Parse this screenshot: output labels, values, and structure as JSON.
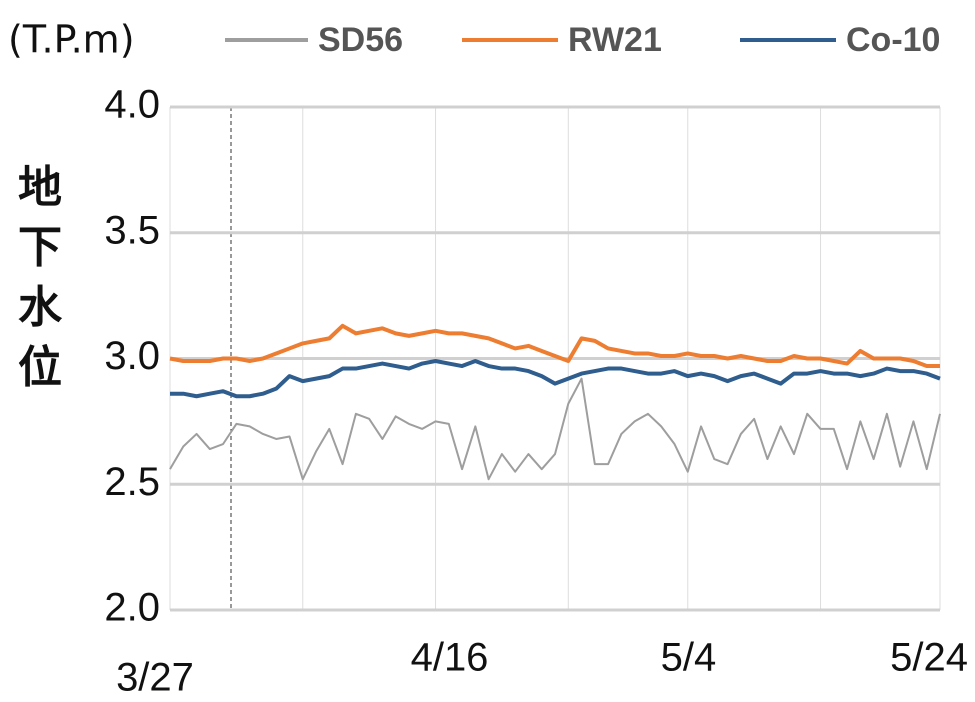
{
  "chart_data": {
    "type": "line",
    "y_unit": "(T.P.m)",
    "ylabel": "地下水位",
    "categories": [
      "3/27",
      null,
      null,
      null,
      null,
      null,
      null,
      null,
      null,
      null,
      null,
      null,
      null,
      null,
      null,
      null,
      null,
      null,
      null,
      null,
      "4/16",
      null,
      null,
      null,
      null,
      null,
      null,
      null,
      null,
      null,
      null,
      null,
      null,
      null,
      null,
      null,
      null,
      null,
      "5/4",
      null,
      null,
      null,
      null,
      null,
      null,
      null,
      null,
      null,
      null,
      null,
      null,
      null,
      null,
      null,
      null,
      null,
      null,
      null,
      "5/24"
    ],
    "series": [
      {
        "name": "SD56",
        "color": "#9e9e9e",
        "values": [
          2.56,
          2.65,
          2.7,
          2.64,
          2.66,
          2.74,
          2.73,
          2.7,
          2.68,
          2.69,
          2.52,
          2.63,
          2.72,
          2.58,
          2.78,
          2.76,
          2.68,
          2.77,
          2.74,
          2.72,
          2.75,
          2.74,
          2.56,
          2.73,
          2.52,
          2.62,
          2.55,
          2.62,
          2.56,
          2.62,
          2.82,
          2.92,
          2.58,
          2.58,
          2.7,
          2.75,
          2.78,
          2.73,
          2.66,
          2.55,
          2.73,
          2.6,
          2.58,
          2.7,
          2.76,
          2.6,
          2.73,
          2.62,
          2.78,
          2.72,
          2.72,
          2.56,
          2.75,
          2.6,
          2.78,
          2.57,
          2.75,
          2.56,
          2.78
        ]
      },
      {
        "name": "RW21",
        "color": "#ed7d31",
        "values": [
          3.0,
          2.99,
          2.99,
          2.99,
          3.0,
          3.0,
          2.99,
          3.0,
          3.02,
          3.04,
          3.06,
          3.07,
          3.08,
          3.13,
          3.1,
          3.11,
          3.12,
          3.1,
          3.09,
          3.1,
          3.11,
          3.1,
          3.1,
          3.09,
          3.08,
          3.06,
          3.04,
          3.05,
          3.03,
          3.01,
          2.99,
          3.08,
          3.07,
          3.04,
          3.03,
          3.02,
          3.02,
          3.01,
          3.01,
          3.02,
          3.01,
          3.01,
          3.0,
          3.01,
          3.0,
          2.99,
          2.99,
          3.01,
          3.0,
          3.0,
          2.99,
          2.98,
          3.03,
          3.0,
          3.0,
          3.0,
          2.99,
          2.97,
          2.97
        ]
      },
      {
        "name": "Co-10",
        "color": "#2e5d8e",
        "values": [
          2.86,
          2.86,
          2.85,
          2.86,
          2.87,
          2.85,
          2.85,
          2.86,
          2.88,
          2.93,
          2.91,
          2.92,
          2.93,
          2.96,
          2.96,
          2.97,
          2.98,
          2.97,
          2.96,
          2.98,
          2.99,
          2.98,
          2.97,
          2.99,
          2.97,
          2.96,
          2.96,
          2.95,
          2.93,
          2.9,
          2.92,
          2.94,
          2.95,
          2.96,
          2.96,
          2.95,
          2.94,
          2.94,
          2.95,
          2.93,
          2.94,
          2.93,
          2.91,
          2.93,
          2.94,
          2.92,
          2.9,
          2.94,
          2.94,
          2.95,
          2.94,
          2.94,
          2.93,
          2.94,
          2.96,
          2.95,
          2.95,
          2.94,
          2.92
        ]
      }
    ],
    "ylim": [
      2,
      4
    ],
    "yticks": [
      {
        "value": 2,
        "label": "2.0"
      },
      2.5,
      {
        "value": 3,
        "label": "3.0"
      },
      3.5,
      {
        "value": 4,
        "label": "4.0"
      }
    ],
    "grid": true
  }
}
